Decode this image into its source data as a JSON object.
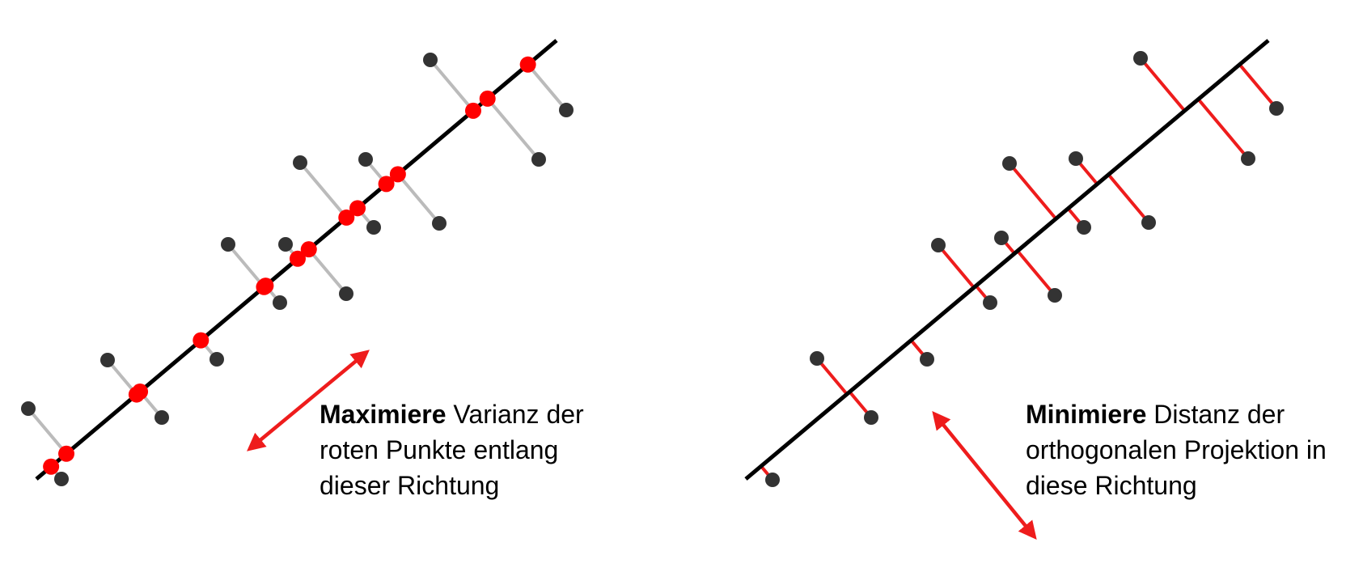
{
  "left": {
    "caption_bold": "Maximiere",
    "caption_rest": " Varianz der roten Punkte entlang dieser Richtung",
    "projection_color": "#ff0000",
    "connector_color": "#bbbbbb",
    "point_color": "#333333",
    "arrow_color": "#ee1c1c"
  },
  "right": {
    "caption_bold": "Minimiere",
    "caption_rest": " Distanz der orthogonalen Projektion in diese Richtung",
    "connector_color": "#ee1c1c",
    "point_color": "#333333",
    "arrow_color": "#ee1c1c"
  }
}
